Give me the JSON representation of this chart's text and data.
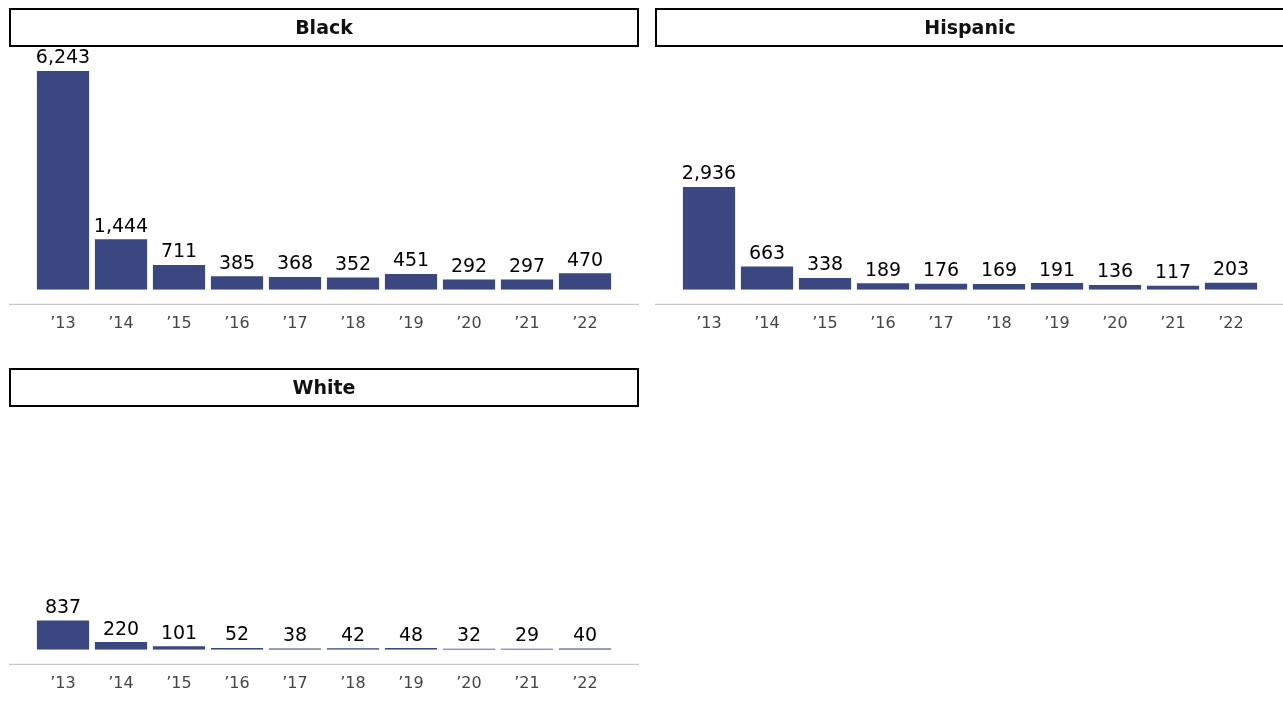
{
  "chart_data": [
    {
      "type": "bar",
      "title": "Black",
      "categories": [
        "’13",
        "’14",
        "’15",
        "’16",
        "’17",
        "’18",
        "’19",
        "’20",
        "’21",
        "’22"
      ],
      "values": [
        6243,
        1444,
        711,
        385,
        368,
        352,
        451,
        292,
        297,
        470
      ],
      "value_labels": [
        "6,243",
        "1,444",
        "711",
        "385",
        "368",
        "352",
        "451",
        "292",
        "297",
        "470"
      ],
      "color": "#3a4780",
      "grid": false,
      "legend": false,
      "tick_labels": "x"
    },
    {
      "type": "bar",
      "title": "Hispanic",
      "categories": [
        "’13",
        "’14",
        "’15",
        "’16",
        "’17",
        "’18",
        "’19",
        "’20",
        "’21",
        "’22"
      ],
      "values": [
        2936,
        663,
        338,
        189,
        176,
        169,
        191,
        136,
        117,
        203
      ],
      "value_labels": [
        "2,936",
        "663",
        "338",
        "189",
        "176",
        "169",
        "191",
        "136",
        "117",
        "203"
      ],
      "color": "#3a4780",
      "grid": false,
      "legend": false,
      "tick_labels": "x"
    },
    {
      "type": "bar",
      "title": "White",
      "categories": [
        "’13",
        "’14",
        "’15",
        "’16",
        "’17",
        "’18",
        "’19",
        "’20",
        "’21",
        "’22"
      ],
      "values": [
        837,
        220,
        101,
        52,
        38,
        42,
        48,
        32,
        29,
        40
      ],
      "data_labels": true,
      "color": "#3a4780",
      "grid": false,
      "legend": false,
      "tick_labels": "x"
    }
  ]
}
